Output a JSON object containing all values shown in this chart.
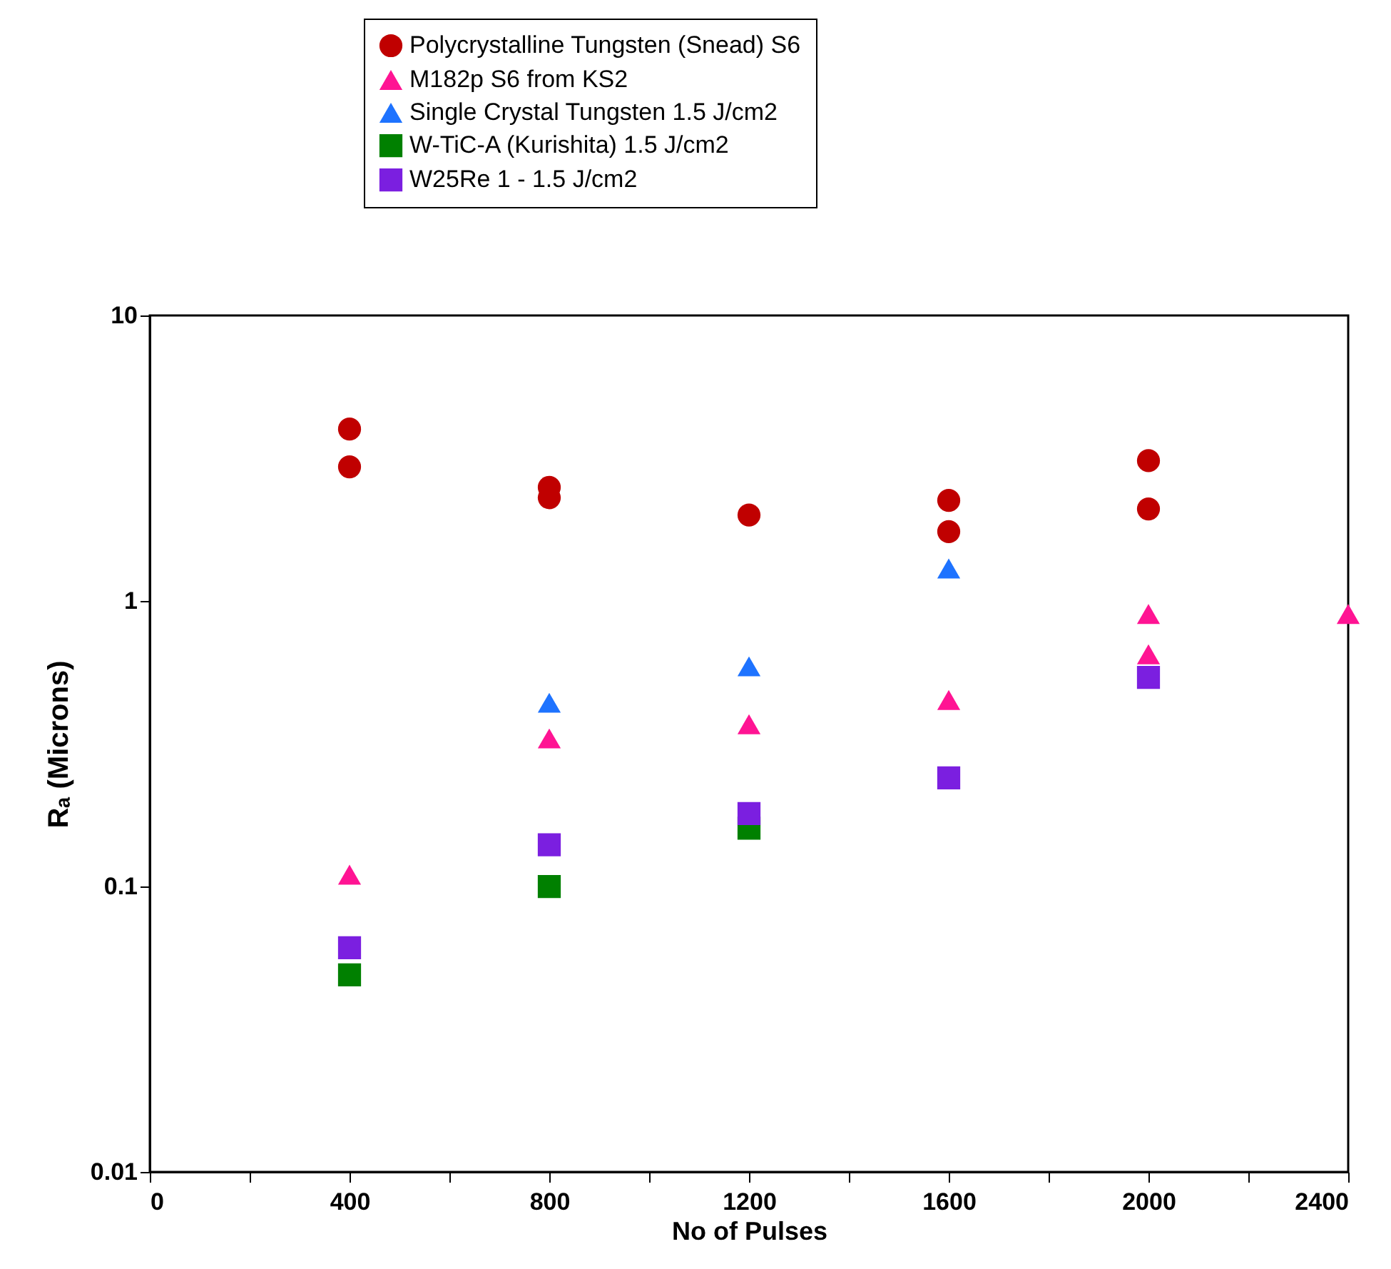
{
  "chart_data": {
    "type": "scatter",
    "xlabel": "No of Pulses",
    "ylabel": "Rₐ (Microns)",
    "log": "y",
    "grid": false,
    "legend": "top",
    "xlim": [
      0,
      2400
    ],
    "ylim": [
      0.01,
      10
    ],
    "xticks": [
      0,
      {
        "value": 200,
        "label": null
      },
      400,
      {
        "value": 600,
        "label": null
      },
      800,
      {
        "value": 1000,
        "label": null
      },
      1200,
      {
        "value": 1400,
        "label": null
      },
      1600,
      {
        "value": 1800,
        "label": null
      },
      2000,
      {
        "value": 2200,
        "label": null
      },
      2400
    ],
    "yticks": [
      0.01,
      0.1,
      1,
      10
    ],
    "series": [
      {
        "name": "Polycrystalline Tungsten (Snead) S6",
        "color": "#c00000",
        "marker": "circle",
        "x": [
          400,
          400,
          800,
          800,
          1200,
          1600,
          1600,
          2000,
          2000
        ],
        "values": [
          4.0,
          2.95,
          2.5,
          2.3,
          2.0,
          2.25,
          1.75,
          3.1,
          2.1
        ]
      },
      {
        "name": "M182p S6 from KS2",
        "color": "#ff1493",
        "marker": "triangle",
        "x": [
          400,
          800,
          1200,
          1600,
          2000,
          2000,
          2400
        ],
        "values": [
          0.11,
          0.33,
          0.37,
          0.45,
          0.9,
          0.65,
          0.9
        ]
      },
      {
        "name": "Single Crystal Tungsten 1.5 J/cm2",
        "color": "#1e73ff",
        "marker": "triangle",
        "x": [
          800,
          1200,
          1600
        ],
        "values": [
          0.44,
          0.59,
          1.3
        ]
      },
      {
        "name": "W-TiC-A (Kurishita) 1.5 J/cm2",
        "color": "#008000",
        "marker": "square",
        "x": [
          400,
          800,
          1200
        ],
        "values": [
          0.049,
          0.1,
          0.16
        ]
      },
      {
        "name": "W25Re 1 - 1.5 J/cm2",
        "color": "#7b1fe0",
        "marker": "square",
        "x": [
          400,
          800,
          1200,
          1600,
          2000
        ],
        "values": [
          0.061,
          0.14,
          0.18,
          0.24,
          0.54
        ]
      }
    ]
  }
}
